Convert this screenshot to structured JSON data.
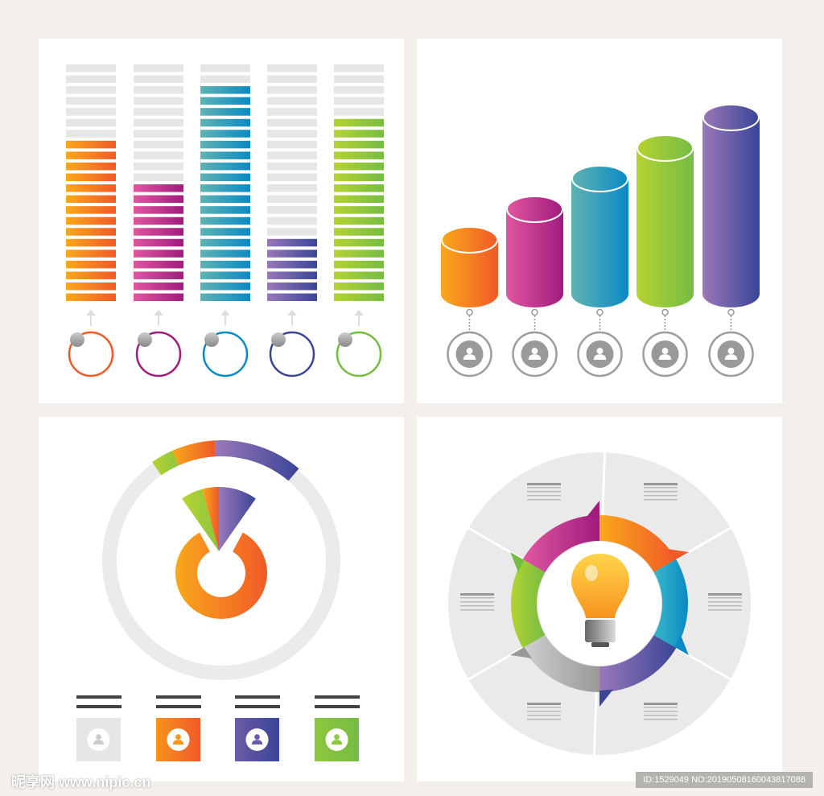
{
  "chart_data": [
    {
      "type": "bar",
      "subtype": "segmented-meter",
      "total_segments": 22,
      "values": [
        15,
        11,
        20,
        6,
        17
      ],
      "colors": [
        [
          "#f9a81b",
          "#f05a28"
        ],
        [
          "#e056a0",
          "#a01c7d"
        ],
        [
          "#5fb3b3",
          "#0a8ac4"
        ],
        [
          "#9a78b8",
          "#3a4598"
        ],
        [
          "#b5d333",
          "#76bc43"
        ]
      ]
    },
    {
      "type": "bar",
      "subtype": "cylinder",
      "values": [
        1,
        2,
        3,
        4,
        5
      ],
      "colors": [
        [
          "#f9a81b",
          "#f05a28"
        ],
        [
          "#e056a0",
          "#a01c7d"
        ],
        [
          "#5fb3b3",
          "#0a8ac4"
        ],
        [
          "#b5d333",
          "#76bc43"
        ],
        [
          "#9a78b8",
          "#3a4598"
        ]
      ]
    },
    {
      "type": "pie",
      "subtype": "donut-with-fan",
      "segments": [
        {
          "color": "#8dc63f"
        },
        {
          "color": "#f7941d"
        },
        {
          "color": "#6b5ca5"
        }
      ],
      "legend_colors": [
        "#e6e6e6",
        "#f7941d",
        "#6b5ca5",
        "#8dc63f"
      ]
    },
    {
      "type": "pie",
      "subtype": "gear-cycle",
      "segments": 6,
      "colors": [
        "#c2338f",
        "#f7941d",
        "#1b9bc0",
        "#6b5ca5",
        "#a7a9ac",
        "#8dc63f"
      ],
      "center_icon": "lightbulb-icon"
    }
  ],
  "watermark": {
    "site": "昵享网 www.nipic.cn",
    "id": "ID:1529049 NO:20190508160043817088"
  }
}
